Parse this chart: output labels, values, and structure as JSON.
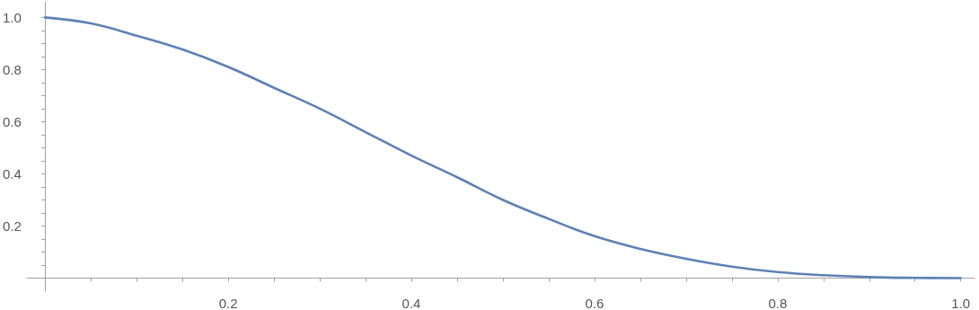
{
  "chart_data": {
    "type": "line",
    "x": [
      0,
      0.05,
      0.1,
      0.15,
      0.2,
      0.25,
      0.3,
      0.35,
      0.4,
      0.45,
      0.5,
      0.55,
      0.6,
      0.65,
      0.7,
      0.75,
      0.8,
      0.85,
      0.9,
      0.95,
      1.0
    ],
    "series": [
      {
        "color": "#5e81b5",
        "values": [
          1.0,
          0.977,
          0.93,
          0.877,
          0.81,
          0.73,
          0.65,
          0.56,
          0.47,
          0.387,
          0.3,
          0.227,
          0.161,
          0.112,
          0.074,
          0.044,
          0.023,
          0.011,
          0.004,
          0.001,
          0
        ]
      }
    ],
    "xlim": [
      -0.02,
      1.015
    ],
    "ylim": [
      -0.05,
      1.06
    ],
    "xticks": [
      {
        "value": 0.05,
        "label": null
      },
      {
        "value": 0.1,
        "label": null
      },
      {
        "value": 0.15,
        "label": null
      },
      0.2,
      {
        "value": 0.25,
        "label": null
      },
      {
        "value": 0.3,
        "label": null
      },
      {
        "value": 0.35,
        "label": null
      },
      0.4,
      {
        "value": 0.45,
        "label": null
      },
      {
        "value": 0.5,
        "label": null
      },
      {
        "value": 0.55,
        "label": null
      },
      0.6,
      {
        "value": 0.65,
        "label": null
      },
      {
        "value": 0.7,
        "label": null
      },
      {
        "value": 0.75,
        "label": null
      },
      0.8,
      {
        "value": 0.85,
        "label": null
      },
      {
        "value": 0.9,
        "label": null
      },
      {
        "value": 0.95,
        "label": null
      },
      {
        "value": 1,
        "label": "1.0"
      }
    ],
    "yticks": [
      {
        "value": 0.05,
        "label": null
      },
      {
        "value": 0.1,
        "label": null
      },
      {
        "value": 0.15,
        "label": null
      },
      0.2,
      {
        "value": 0.25,
        "label": null
      },
      {
        "value": 0.3,
        "label": null
      },
      {
        "value": 0.35,
        "label": null
      },
      0.4,
      {
        "value": 0.45,
        "label": null
      },
      {
        "value": 0.5,
        "label": null
      },
      {
        "value": 0.55,
        "label": null
      },
      0.6,
      {
        "value": 0.65,
        "label": null
      },
      {
        "value": 0.7,
        "label": null
      },
      {
        "value": 0.75,
        "label": null
      },
      0.8,
      {
        "value": 0.85,
        "label": null
      },
      {
        "value": 0.9,
        "label": null
      },
      {
        "value": 0.95,
        "label": null
      },
      {
        "value": 1,
        "label": "1.0"
      }
    ],
    "grid": false,
    "marker": "none",
    "line_style": "solid"
  }
}
